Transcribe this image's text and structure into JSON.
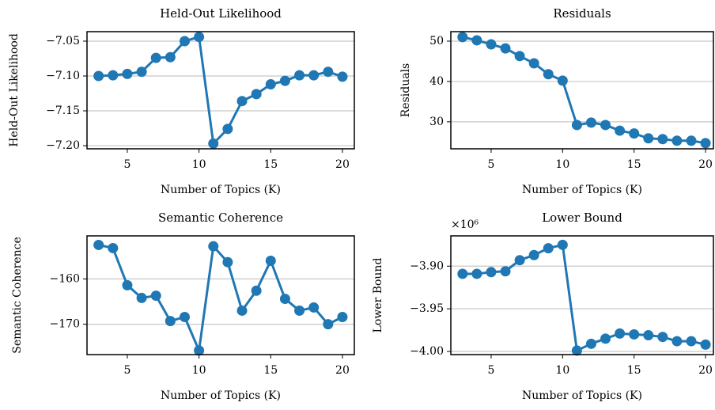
{
  "chart_data": [
    {
      "type": "line",
      "title": "Held-Out Likelihood",
      "xlabel": "Number of Topics (K)",
      "ylabel": "Held-Out Likelihood",
      "x": [
        3,
        4,
        5,
        6,
        7,
        8,
        9,
        10,
        11,
        12,
        13,
        14,
        15,
        16,
        17,
        18,
        19,
        20
      ],
      "values": [
        -7.1,
        -7.099,
        -7.097,
        -7.094,
        -7.074,
        -7.073,
        -7.05,
        -7.044,
        -7.197,
        -7.176,
        -7.136,
        -7.126,
        -7.112,
        -7.107,
        -7.099,
        -7.099,
        -7.094,
        -7.101
      ],
      "color": "#1f77b4",
      "xlim": [
        2.19,
        20.83
      ],
      "ylim": [
        -7.2045,
        -7.0364
      ],
      "xticks": [
        5,
        10,
        15,
        20
      ],
      "yticks": [
        {
          "value": -7.05,
          "label": "−7.05"
        },
        {
          "value": -7.1,
          "label": "−7.10"
        },
        {
          "value": -7.15,
          "label": "−7.15"
        },
        {
          "value": -7.2,
          "label": "−7.20"
        }
      ],
      "grid": true
    },
    {
      "type": "line",
      "title": "Residuals",
      "xlabel": "Number of Topics (K)",
      "ylabel": "Residuals",
      "x": [
        3,
        4,
        5,
        6,
        7,
        8,
        9,
        10,
        11,
        12,
        13,
        14,
        15,
        16,
        17,
        18,
        19,
        20
      ],
      "values": [
        51.0,
        50.2,
        49.2,
        48.2,
        46.3,
        44.5,
        41.8,
        40.2,
        29.2,
        29.8,
        29.2,
        27.8,
        27.1,
        25.9,
        25.7,
        25.3,
        25.3,
        24.7
      ],
      "color": "#1f77b4",
      "xlim": [
        2.18,
        20.55
      ],
      "ylim": [
        23.3,
        52.35
      ],
      "xticks": [
        5,
        10,
        15,
        20
      ],
      "yticks": [
        30,
        40,
        50
      ],
      "grid": true
    },
    {
      "type": "line",
      "title": "Semantic Coherence",
      "xlabel": "Number of Topics (K)",
      "ylabel": "Semantic Coherence",
      "x": [
        3,
        4,
        5,
        6,
        7,
        8,
        9,
        10,
        11,
        12,
        13,
        14,
        15,
        16,
        17,
        18,
        19,
        20
      ],
      "values": [
        -152.5,
        -153.2,
        -161.4,
        -164.2,
        -163.7,
        -169.3,
        -168.4,
        -175.8,
        -152.8,
        -156.3,
        -167.0,
        -162.6,
        -156.0,
        -164.4,
        -167.0,
        -166.3,
        -170.0,
        -168.4
      ],
      "color": "#1f77b4",
      "xlim": [
        2.19,
        20.83
      ],
      "ylim": [
        -176.7,
        -150.5
      ],
      "xticks": [
        5,
        10,
        15,
        20
      ],
      "yticks": [
        {
          "value": -160,
          "label": "−160"
        },
        {
          "value": -170,
          "label": "−170"
        }
      ],
      "grid": true
    },
    {
      "type": "line",
      "title": "Lower Bound",
      "xlabel": "Number of Topics (K)",
      "ylabel": "Lower Bound",
      "offset_text": "×10⁶",
      "x": [
        3,
        4,
        5,
        6,
        7,
        8,
        9,
        10,
        11,
        12,
        13,
        14,
        15,
        16,
        17,
        18,
        19,
        20
      ],
      "values": [
        -3.909,
        -3.909,
        -3.907,
        -3.906,
        -3.893,
        -3.887,
        -3.879,
        -3.875,
        -3.999,
        -3.991,
        -3.985,
        -3.979,
        -3.98,
        -3.981,
        -3.983,
        -3.988,
        -3.988,
        -3.992
      ],
      "color": "#1f77b4",
      "xlim": [
        2.18,
        20.55
      ],
      "ylim": [
        -4.0037,
        -3.8645
      ],
      "xticks": [
        5,
        10,
        15,
        20
      ],
      "yticks": [
        {
          "value": -3.9,
          "label": "−3.90"
        },
        {
          "value": -3.95,
          "label": "−3.95"
        },
        {
          "value": -4.0,
          "label": "−4.00"
        }
      ],
      "grid": true
    }
  ]
}
